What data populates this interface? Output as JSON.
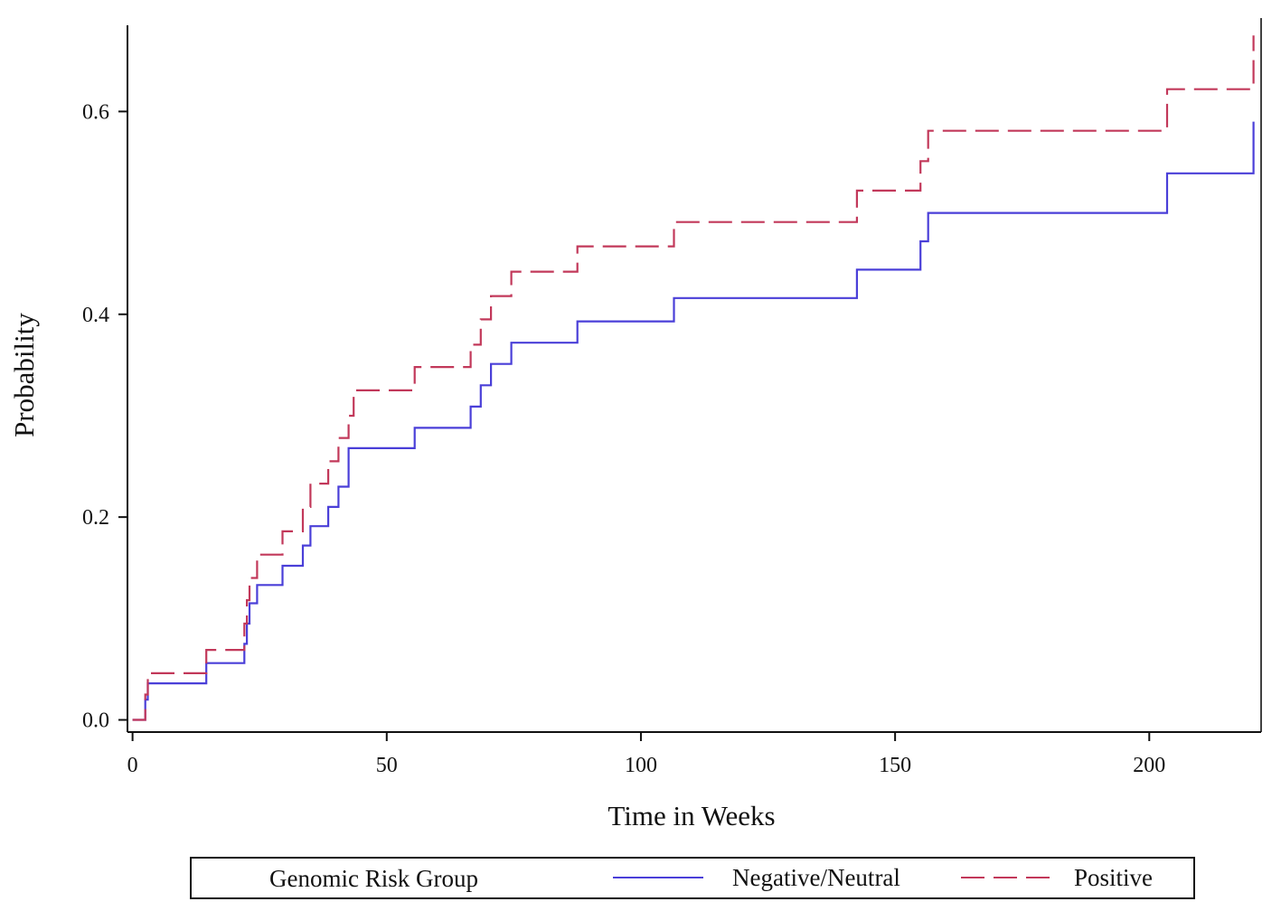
{
  "chart_data": {
    "type": "line",
    "subtype": "step",
    "title": "",
    "xlabel": "Time in Weeks",
    "ylabel": "Probability",
    "xlim": [
      -1,
      222
    ],
    "ylim": [
      -0.012,
      0.685
    ],
    "xticks": [
      0,
      50,
      100,
      150,
      200
    ],
    "xtick_labels": [
      "0",
      "50",
      "100",
      "150",
      "200"
    ],
    "yticks": [
      0.0,
      0.2,
      0.4,
      0.6
    ],
    "ytick_labels": [
      "0.0",
      "0.2",
      "0.4",
      "0.6"
    ],
    "grid": false,
    "legend": {
      "placement": "bottom",
      "title": "Genomic Risk Group",
      "entries": [
        "Negative/Neutral",
        "Positive"
      ]
    },
    "series": [
      {
        "name": "Negative/Neutral",
        "color": "#4a3fd8",
        "dash": "solid",
        "x": [
          0,
          2.5,
          3,
          14.5,
          22,
          22.5,
          23,
          24.5,
          29.5,
          33.5,
          35,
          38.5,
          40.5,
          42.5,
          43.5,
          55.5,
          66.5,
          68.5,
          70.5,
          74.5,
          87.5,
          106.5,
          142.5,
          155,
          156.5,
          203.5,
          220.5
        ],
        "y": [
          0,
          0.02,
          0.036,
          0.056,
          0.075,
          0.095,
          0.115,
          0.133,
          0.152,
          0.172,
          0.191,
          0.21,
          0.23,
          0.268,
          0.268,
          0.288,
          0.309,
          0.33,
          0.351,
          0.372,
          0.393,
          0.416,
          0.444,
          0.472,
          0.5,
          0.539,
          0.59
        ]
      },
      {
        "name": "Positive",
        "color": "#c2385a",
        "dash": "dashed",
        "x": [
          0,
          2.5,
          3,
          14.5,
          22,
          22.5,
          23,
          24.5,
          29.5,
          33.5,
          35,
          38.5,
          40.5,
          42.5,
          43.5,
          55.5,
          66.5,
          68.5,
          70.5,
          74.5,
          87.5,
          106.5,
          142.5,
          155,
          156.5,
          203.5,
          220.5
        ],
        "y": [
          0,
          0.025,
          0.046,
          0.069,
          0.095,
          0.118,
          0.14,
          0.163,
          0.186,
          0.21,
          0.233,
          0.255,
          0.278,
          0.3,
          0.325,
          0.348,
          0.37,
          0.395,
          0.418,
          0.442,
          0.467,
          0.491,
          0.522,
          0.551,
          0.581,
          0.622,
          0.675
        ]
      }
    ]
  }
}
